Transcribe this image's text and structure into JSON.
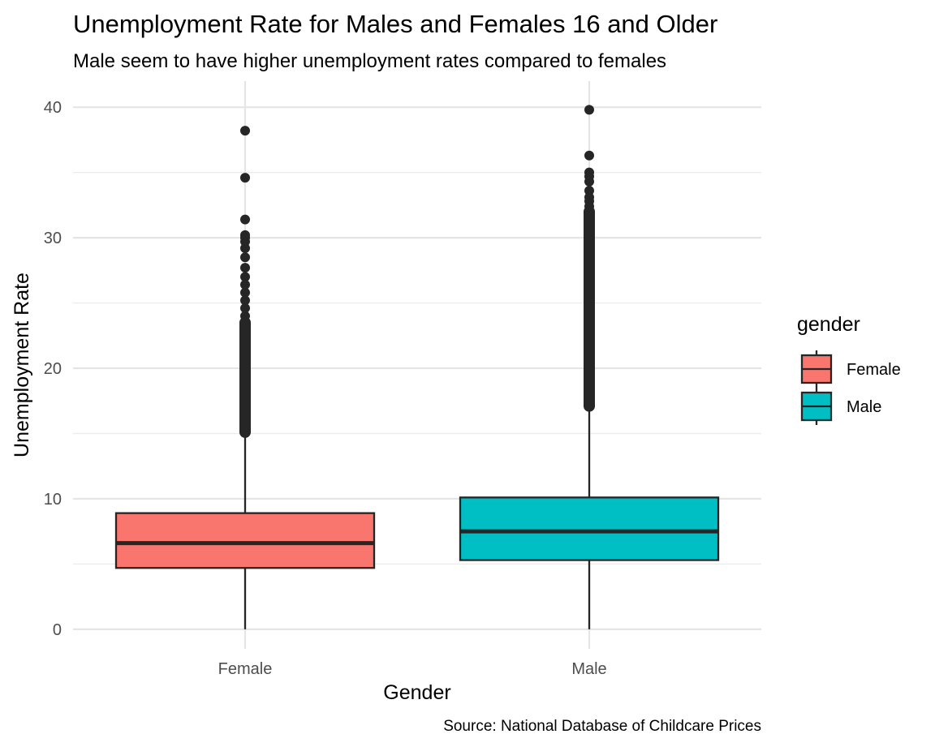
{
  "chart_data": {
    "type": "boxplot",
    "title": "Unemployment Rate for Males and Females 16 and Older",
    "subtitle": "Male seem to have higher unemployment rates compared to females",
    "caption": "Source: National Database of Childcare Prices",
    "xlabel": "Gender",
    "ylabel": "Unemployment Rate",
    "ylim": [
      -1.5,
      42
    ],
    "yticks": [
      0,
      10,
      20,
      30,
      40
    ],
    "grid": true,
    "legend": {
      "title": "gender",
      "placement": "right"
    },
    "categories": [
      "Female",
      "Male"
    ],
    "series": [
      {
        "name": "Female",
        "color": "#F8766D",
        "min": 0,
        "q1": 4.7,
        "median": 6.6,
        "q3": 8.9,
        "max": 15.1,
        "outlier_range": [
          15.1,
          23.5
        ],
        "outliers": [
          24.0,
          24.6,
          25.2,
          25.8,
          26.4,
          27.0,
          27.7,
          28.5,
          29.2,
          29.7,
          30.0,
          30.2,
          31.4,
          34.6,
          38.2
        ]
      },
      {
        "name": "Male",
        "color": "#00BFC4",
        "min": 0,
        "q1": 5.3,
        "median": 7.5,
        "q3": 10.1,
        "max": 17.1,
        "outlier_range": [
          17.1,
          32.0
        ],
        "outliers": [
          32.4,
          32.8,
          33.1,
          33.6,
          34.3,
          34.7,
          35.0,
          36.3,
          39.8
        ]
      }
    ]
  }
}
